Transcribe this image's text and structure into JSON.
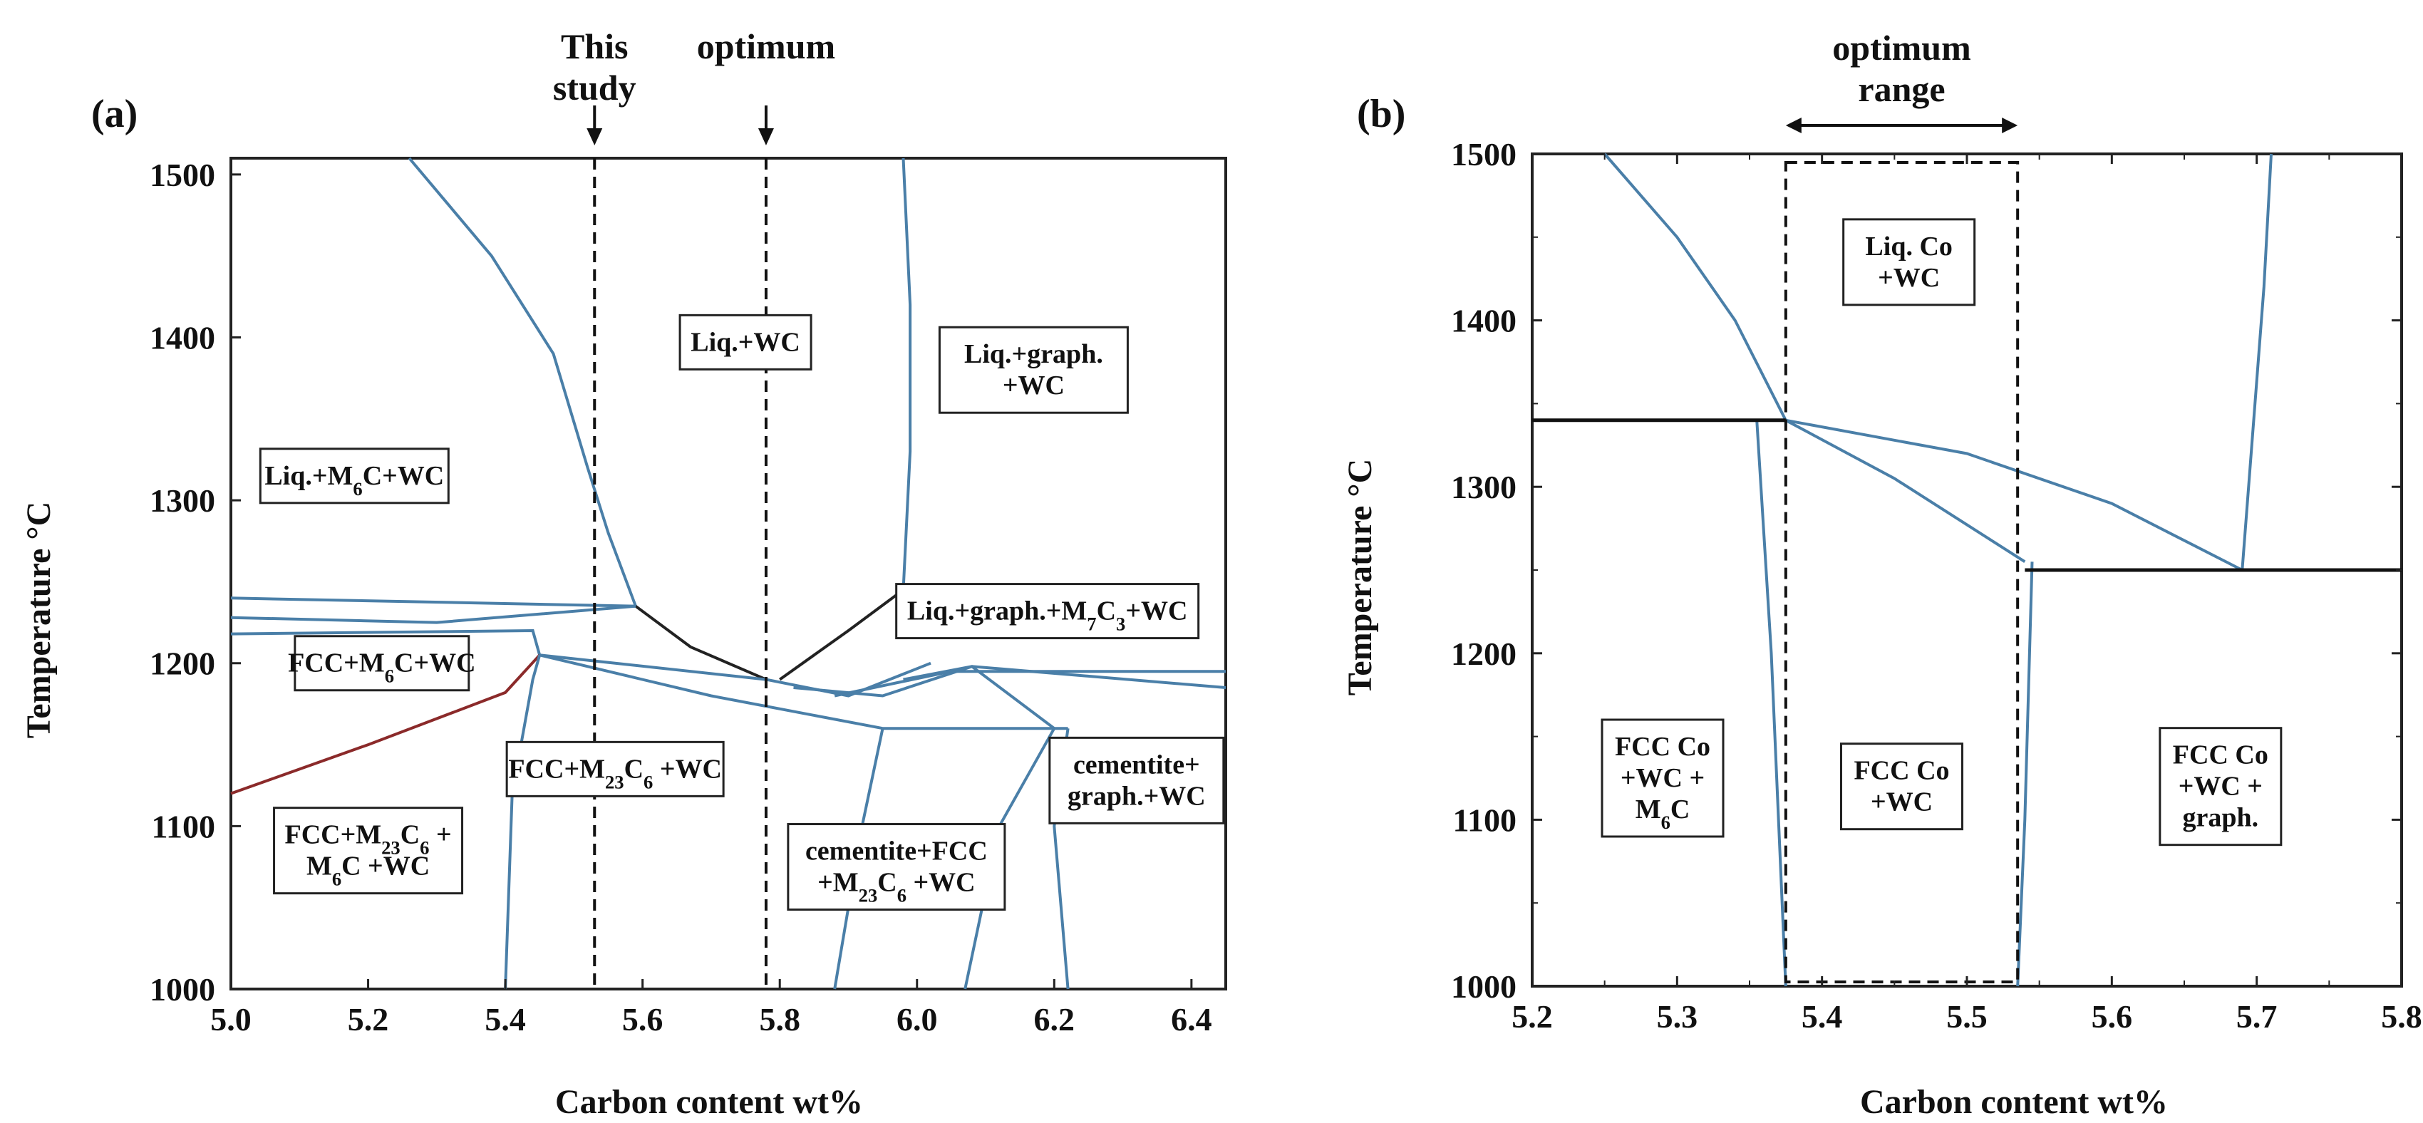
{
  "chart_data": [
    {
      "panel": "(a)",
      "type": "phase-diagram",
      "xlabel": "Carbon content wt%",
      "ylabel": "Temperature °C",
      "xlim": [
        5.0,
        6.45
      ],
      "ylim": [
        1000,
        1510
      ],
      "x_ticks": [
        "5.0",
        "5.2",
        "5.4",
        "5.6",
        "5.8",
        "6.0",
        "6.2",
        "6.4"
      ],
      "y_ticks": [
        "1000",
        "1100",
        "1200",
        "1300",
        "1400",
        "1500"
      ],
      "annotations": [
        {
          "lines": [
            "This",
            "study"
          ],
          "x": 5.53
        },
        {
          "lines": [
            "optimum"
          ],
          "x": 5.78
        }
      ],
      "regions": [
        {
          "lines": [
            "Liq.+WC"
          ],
          "x": 5.75,
          "y": 1397
        },
        {
          "lines": [
            "Liq.+graph.",
            "+WC"
          ],
          "x": 6.17,
          "y": 1380
        },
        {
          "lines": [
            "Liq.+M6C+WC"
          ],
          "x": 5.18,
          "y": 1315
        },
        {
          "lines": [
            "Liq.+graph.+M7C3+WC"
          ],
          "x": 6.19,
          "y": 1232
        },
        {
          "lines": [
            "FCC+M6C+WC"
          ],
          "x": 5.22,
          "y": 1200
        },
        {
          "lines": [
            "FCC+M23C6 +WC"
          ],
          "x": 5.56,
          "y": 1135
        },
        {
          "lines": [
            "cementite+",
            "graph.+WC"
          ],
          "x": 6.32,
          "y": 1128
        },
        {
          "lines": [
            "FCC+M23C6 +",
            "M6C +WC"
          ],
          "x": 5.2,
          "y": 1085
        },
        {
          "lines": [
            "cementite+FCC",
            "+M23C6 +WC"
          ],
          "x": 5.97,
          "y": 1075
        }
      ],
      "boundaries": [
        {
          "name": "liquidus-left",
          "points": [
            [
              5.26,
              1510
            ],
            [
              5.38,
              1450
            ],
            [
              5.47,
              1390
            ],
            [
              5.52,
              1320
            ],
            [
              5.55,
              1280
            ],
            [
              5.59,
              1235
            ]
          ]
        },
        {
          "name": "liquidus-right",
          "points": [
            [
              5.98,
              1510
            ],
            [
              5.99,
              1420
            ],
            [
              5.99,
              1330
            ],
            [
              5.98,
              1245
            ]
          ]
        },
        {
          "name": "eutectic-valley-left",
          "points": [
            [
              5.59,
              1235
            ],
            [
              5.67,
              1210
            ],
            [
              5.78,
              1190
            ]
          ]
        },
        {
          "name": "eutectic-valley-right",
          "points": [
            [
              5.8,
              1190
            ],
            [
              5.9,
              1220
            ],
            [
              5.98,
              1245
            ]
          ]
        },
        {
          "name": "m6c-liq-upper",
          "points": [
            [
              5.0,
              1240
            ],
            [
              5.59,
              1235
            ]
          ]
        },
        {
          "name": "m6c-liq-lower",
          "points": [
            [
              5.0,
              1228
            ],
            [
              5.3,
              1225
            ],
            [
              5.59,
              1235
            ]
          ]
        },
        {
          "name": "fcc-m6c-top",
          "points": [
            [
              5.0,
              1218
            ],
            [
              5.44,
              1220
            ],
            [
              5.45,
              1205
            ]
          ]
        },
        {
          "name": "m23c6-solvus",
          "points": [
            [
              5.0,
              1120
            ],
            [
              5.2,
              1150
            ],
            [
              5.4,
              1182
            ],
            [
              5.45,
              1205
            ]
          ]
        },
        {
          "name": "fcc-left-edge",
          "points": [
            [
              5.45,
              1205
            ],
            [
              5.44,
              1190
            ],
            [
              5.41,
              1120
            ],
            [
              5.4,
              1000
            ]
          ]
        },
        {
          "name": "m6c-fcc-line",
          "points": [
            [
              5.45,
              1205
            ],
            [
              5.78,
              1190
            ]
          ]
        },
        {
          "name": "fcc-m23c6-top",
          "points": [
            [
              5.45,
              1205
            ],
            [
              5.7,
              1180
            ],
            [
              5.95,
              1160
            ]
          ]
        },
        {
          "name": "cementite-top",
          "points": [
            [
              5.88,
              1180
            ],
            [
              6.05,
              1195
            ],
            [
              6.45,
              1195
            ]
          ]
        },
        {
          "name": "graph-top",
          "points": [
            [
              5.98,
              1190
            ],
            [
              6.08,
              1198
            ],
            [
              6.45,
              1185
            ]
          ]
        },
        {
          "name": "m7c3-upper",
          "points": [
            [
              5.78,
              1190
            ],
            [
              5.9,
              1180
            ],
            [
              6.02,
              1200
            ]
          ]
        },
        {
          "name": "m7c3-lower",
          "points": [
            [
              5.82,
              1185
            ],
            [
              5.95,
              1180
            ],
            [
              6.08,
              1198
            ],
            [
              6.2,
              1160
            ]
          ]
        },
        {
          "name": "eutectoid-line",
          "points": [
            [
              5.95,
              1160
            ],
            [
              6.22,
              1160
            ]
          ]
        },
        {
          "name": "m23c6-right",
          "points": [
            [
              5.95,
              1160
            ],
            [
              5.92,
              1100
            ],
            [
              5.88,
              1000
            ]
          ]
        },
        {
          "name": "cementite-right",
          "points": [
            [
              6.22,
              1160
            ],
            [
              6.2,
              1100
            ],
            [
              6.22,
              1000
            ]
          ]
        },
        {
          "name": "cementite-mid",
          "points": [
            [
              6.2,
              1160
            ],
            [
              6.12,
              1100
            ],
            [
              6.07,
              1000
            ]
          ]
        }
      ],
      "reference_lines": [
        5.53,
        5.78
      ]
    },
    {
      "panel": "(b)",
      "type": "phase-diagram",
      "xlabel": "Carbon content wt%",
      "ylabel": "Temperature °C",
      "xlim": [
        5.2,
        5.8
      ],
      "ylim": [
        1000,
        1500
      ],
      "x_ticks": [
        "5.2",
        "5.3",
        "5.4",
        "5.5",
        "5.6",
        "5.7",
        "5.8"
      ],
      "y_ticks": [
        "1000",
        "1100",
        "1200",
        "1300",
        "1400",
        "1500"
      ],
      "annotations": [
        {
          "lines": [
            "optimum",
            "range"
          ],
          "x": 5.455
        }
      ],
      "optimum_range": [
        5.375,
        5.535
      ],
      "regions": [
        {
          "lines": [
            "Liq. Co",
            "+WC"
          ],
          "x": 5.46,
          "y": 1435
        },
        {
          "lines": [
            "FCC Co",
            "+WC +",
            "M6C"
          ],
          "x": 5.29,
          "y": 1125
        },
        {
          "lines": [
            "FCC Co",
            "+WC"
          ],
          "x": 5.455,
          "y": 1120
        },
        {
          "lines": [
            "FCC Co",
            "+WC +",
            "graph."
          ],
          "x": 5.675,
          "y": 1120
        }
      ],
      "boundaries": [
        {
          "name": "liquidus-left",
          "points": [
            [
              5.25,
              1500
            ],
            [
              5.3,
              1450
            ],
            [
              5.34,
              1400
            ],
            [
              5.375,
              1340
            ]
          ]
        },
        {
          "name": "liquidus-right",
          "points": [
            [
              5.71,
              1500
            ],
            [
              5.705,
              1420
            ],
            [
              5.69,
              1250
            ]
          ]
        },
        {
          "name": "solidus-upper",
          "points": [
            [
              5.375,
              1340
            ],
            [
              5.5,
              1320
            ],
            [
              5.6,
              1290
            ],
            [
              5.69,
              1250
            ]
          ]
        },
        {
          "name": "solidus-lower",
          "points": [
            [
              5.375,
              1340
            ],
            [
              5.45,
              1305
            ],
            [
              5.54,
              1255
            ]
          ]
        },
        {
          "name": "fcc-left",
          "points": [
            [
              5.355,
              1340
            ],
            [
              5.365,
              1200
            ],
            [
              5.375,
              1000
            ]
          ]
        },
        {
          "name": "fcc-right",
          "points": [
            [
              5.545,
              1255
            ],
            [
              5.54,
              1100
            ],
            [
              5.535,
              1000
            ]
          ]
        }
      ],
      "isotherms": [
        {
          "name": "upper-isotherm",
          "y": 1340,
          "x": [
            5.2,
            5.375
          ]
        },
        {
          "name": "lower-isotherm",
          "y": 1250,
          "x": [
            5.54,
            5.8
          ]
        }
      ]
    }
  ]
}
